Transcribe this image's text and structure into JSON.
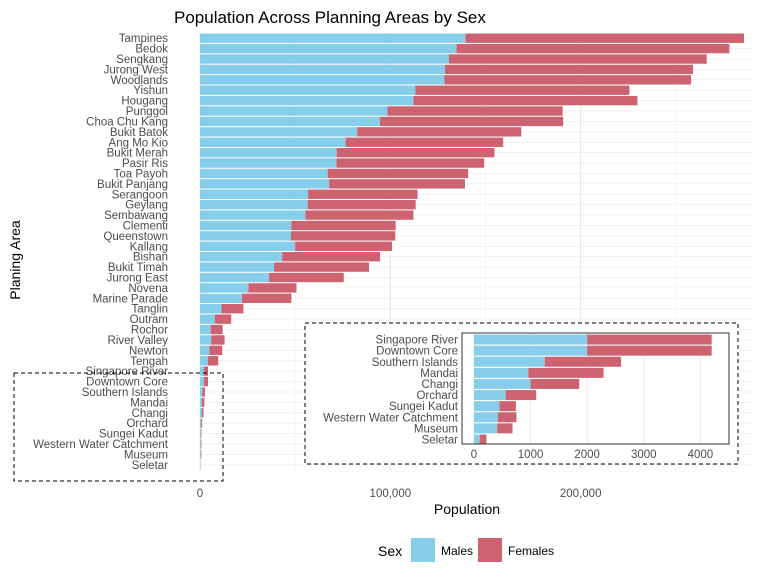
{
  "chart_data": [
    {
      "type": "bar",
      "orientation": "horizontal",
      "stacked": true,
      "title": "Population Across Planning Areas by Sex",
      "xlabel": "Population",
      "ylabel": "Planing Area",
      "x_ticks": [
        0,
        100000,
        200000
      ],
      "x_tick_labels": [
        "0",
        "100,000",
        "200,000"
      ],
      "xlim": [
        0,
        290000
      ],
      "legend_title": "Sex",
      "legend_position": "bottom",
      "grid": true,
      "categories": [
        "Tampines",
        "Bedok",
        "Sengkang",
        "Jurong West",
        "Woodlands",
        "Yishun",
        "Hougang",
        "Punggol",
        "Choa Chu Kang",
        "Bukit Batok",
        "Ang Mo Kio",
        "Bukit Merah",
        "Pasir Ris",
        "Toa Payoh",
        "Bukit Panjang",
        "Serangoon",
        "Geylang",
        "Sembawang",
        "Clementi",
        "Queenstown",
        "Kallang",
        "Bishan",
        "Bukit Timah",
        "Jurong East",
        "Novena",
        "Marine Parade",
        "Tanglin",
        "Outram",
        "Rochor",
        "River Valley",
        "Newton",
        "Tengah",
        "Singapore River",
        "Downtown Core",
        "Southern Islands",
        "Mandai",
        "Changi",
        "Orchard",
        "Sungei Kadut",
        "Western Water Catchment",
        "Museum",
        "Seletar"
      ],
      "series": [
        {
          "name": "Males",
          "color": "#87ceeb",
          "values": [
            139500,
            134800,
            130800,
            128700,
            128400,
            113200,
            112100,
            98500,
            94500,
            82600,
            76500,
            71800,
            71700,
            67100,
            67900,
            56800,
            56600,
            55400,
            48000,
            47800,
            50000,
            43200,
            38900,
            36300,
            25400,
            22000,
            11300,
            7800,
            5600,
            5900,
            5000,
            4200,
            2000,
            2000,
            1250,
            960,
            1000,
            560,
            450,
            420,
            410,
            100
          ]
        },
        {
          "name": "Females",
          "color": "#cd6270",
          "values": [
            146300,
            143300,
            135400,
            130300,
            129600,
            112400,
            117700,
            92000,
            96300,
            86200,
            82800,
            82900,
            77600,
            73800,
            71300,
            57500,
            56700,
            56700,
            54800,
            54800,
            50900,
            51400,
            49900,
            39200,
            25300,
            26000,
            11500,
            8600,
            6300,
            7000,
            6700,
            5400,
            2200,
            2200,
            1350,
            1330,
            860,
            540,
            290,
            330,
            270,
            120
          ]
        }
      ]
    },
    {
      "type": "bar",
      "orientation": "horizontal",
      "stacked": true,
      "inset": true,
      "x_ticks": [
        0,
        1000,
        2000,
        3000,
        4000
      ],
      "x_tick_labels": [
        "0",
        "1000",
        "2000",
        "3000",
        "4000"
      ],
      "xlim": [
        0,
        4400
      ],
      "categories": [
        "Singapore River",
        "Downtown Core",
        "Southern Islands",
        "Mandai",
        "Changi",
        "Orchard",
        "Sungei Kadut",
        "Western Water Catchment",
        "Museum",
        "Seletar"
      ],
      "series": [
        {
          "name": "Males",
          "values": [
            2000,
            2000,
            1250,
            960,
            1000,
            560,
            450,
            420,
            410,
            100
          ]
        },
        {
          "name": "Females",
          "values": [
            2200,
            2200,
            1350,
            1330,
            860,
            540,
            290,
            330,
            270,
            120
          ]
        }
      ]
    }
  ]
}
